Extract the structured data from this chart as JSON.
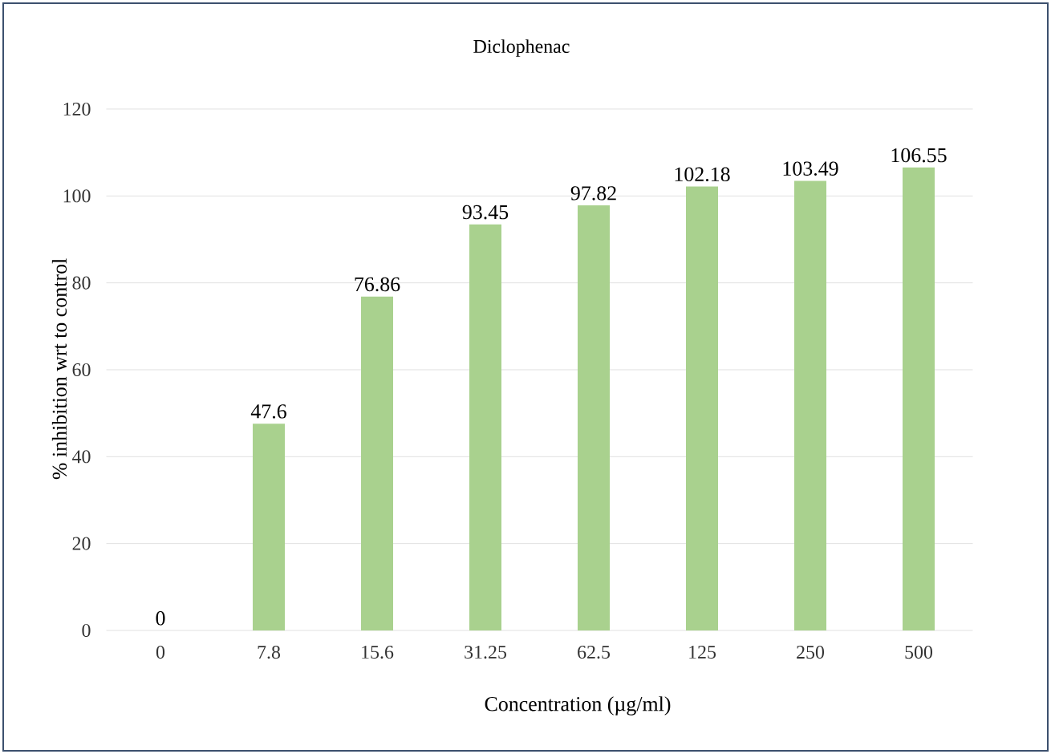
{
  "chart_data": {
    "type": "bar",
    "title": "Diclophenac",
    "xlabel": "Concentration (µg/ml)",
    "ylabel": "% inhibition wrt to control",
    "categories": [
      "0",
      "7.8",
      "15.6",
      "31.25",
      "62.5",
      "125",
      "250",
      "500"
    ],
    "values": [
      0,
      47.6,
      76.86,
      93.45,
      97.82,
      102.18,
      103.49,
      106.55
    ],
    "color": "#a9d18e",
    "ylim": [
      0,
      120
    ],
    "yticks": [
      0,
      20,
      40,
      60,
      80,
      100,
      120
    ],
    "grid": "y",
    "data_labels": true
  }
}
